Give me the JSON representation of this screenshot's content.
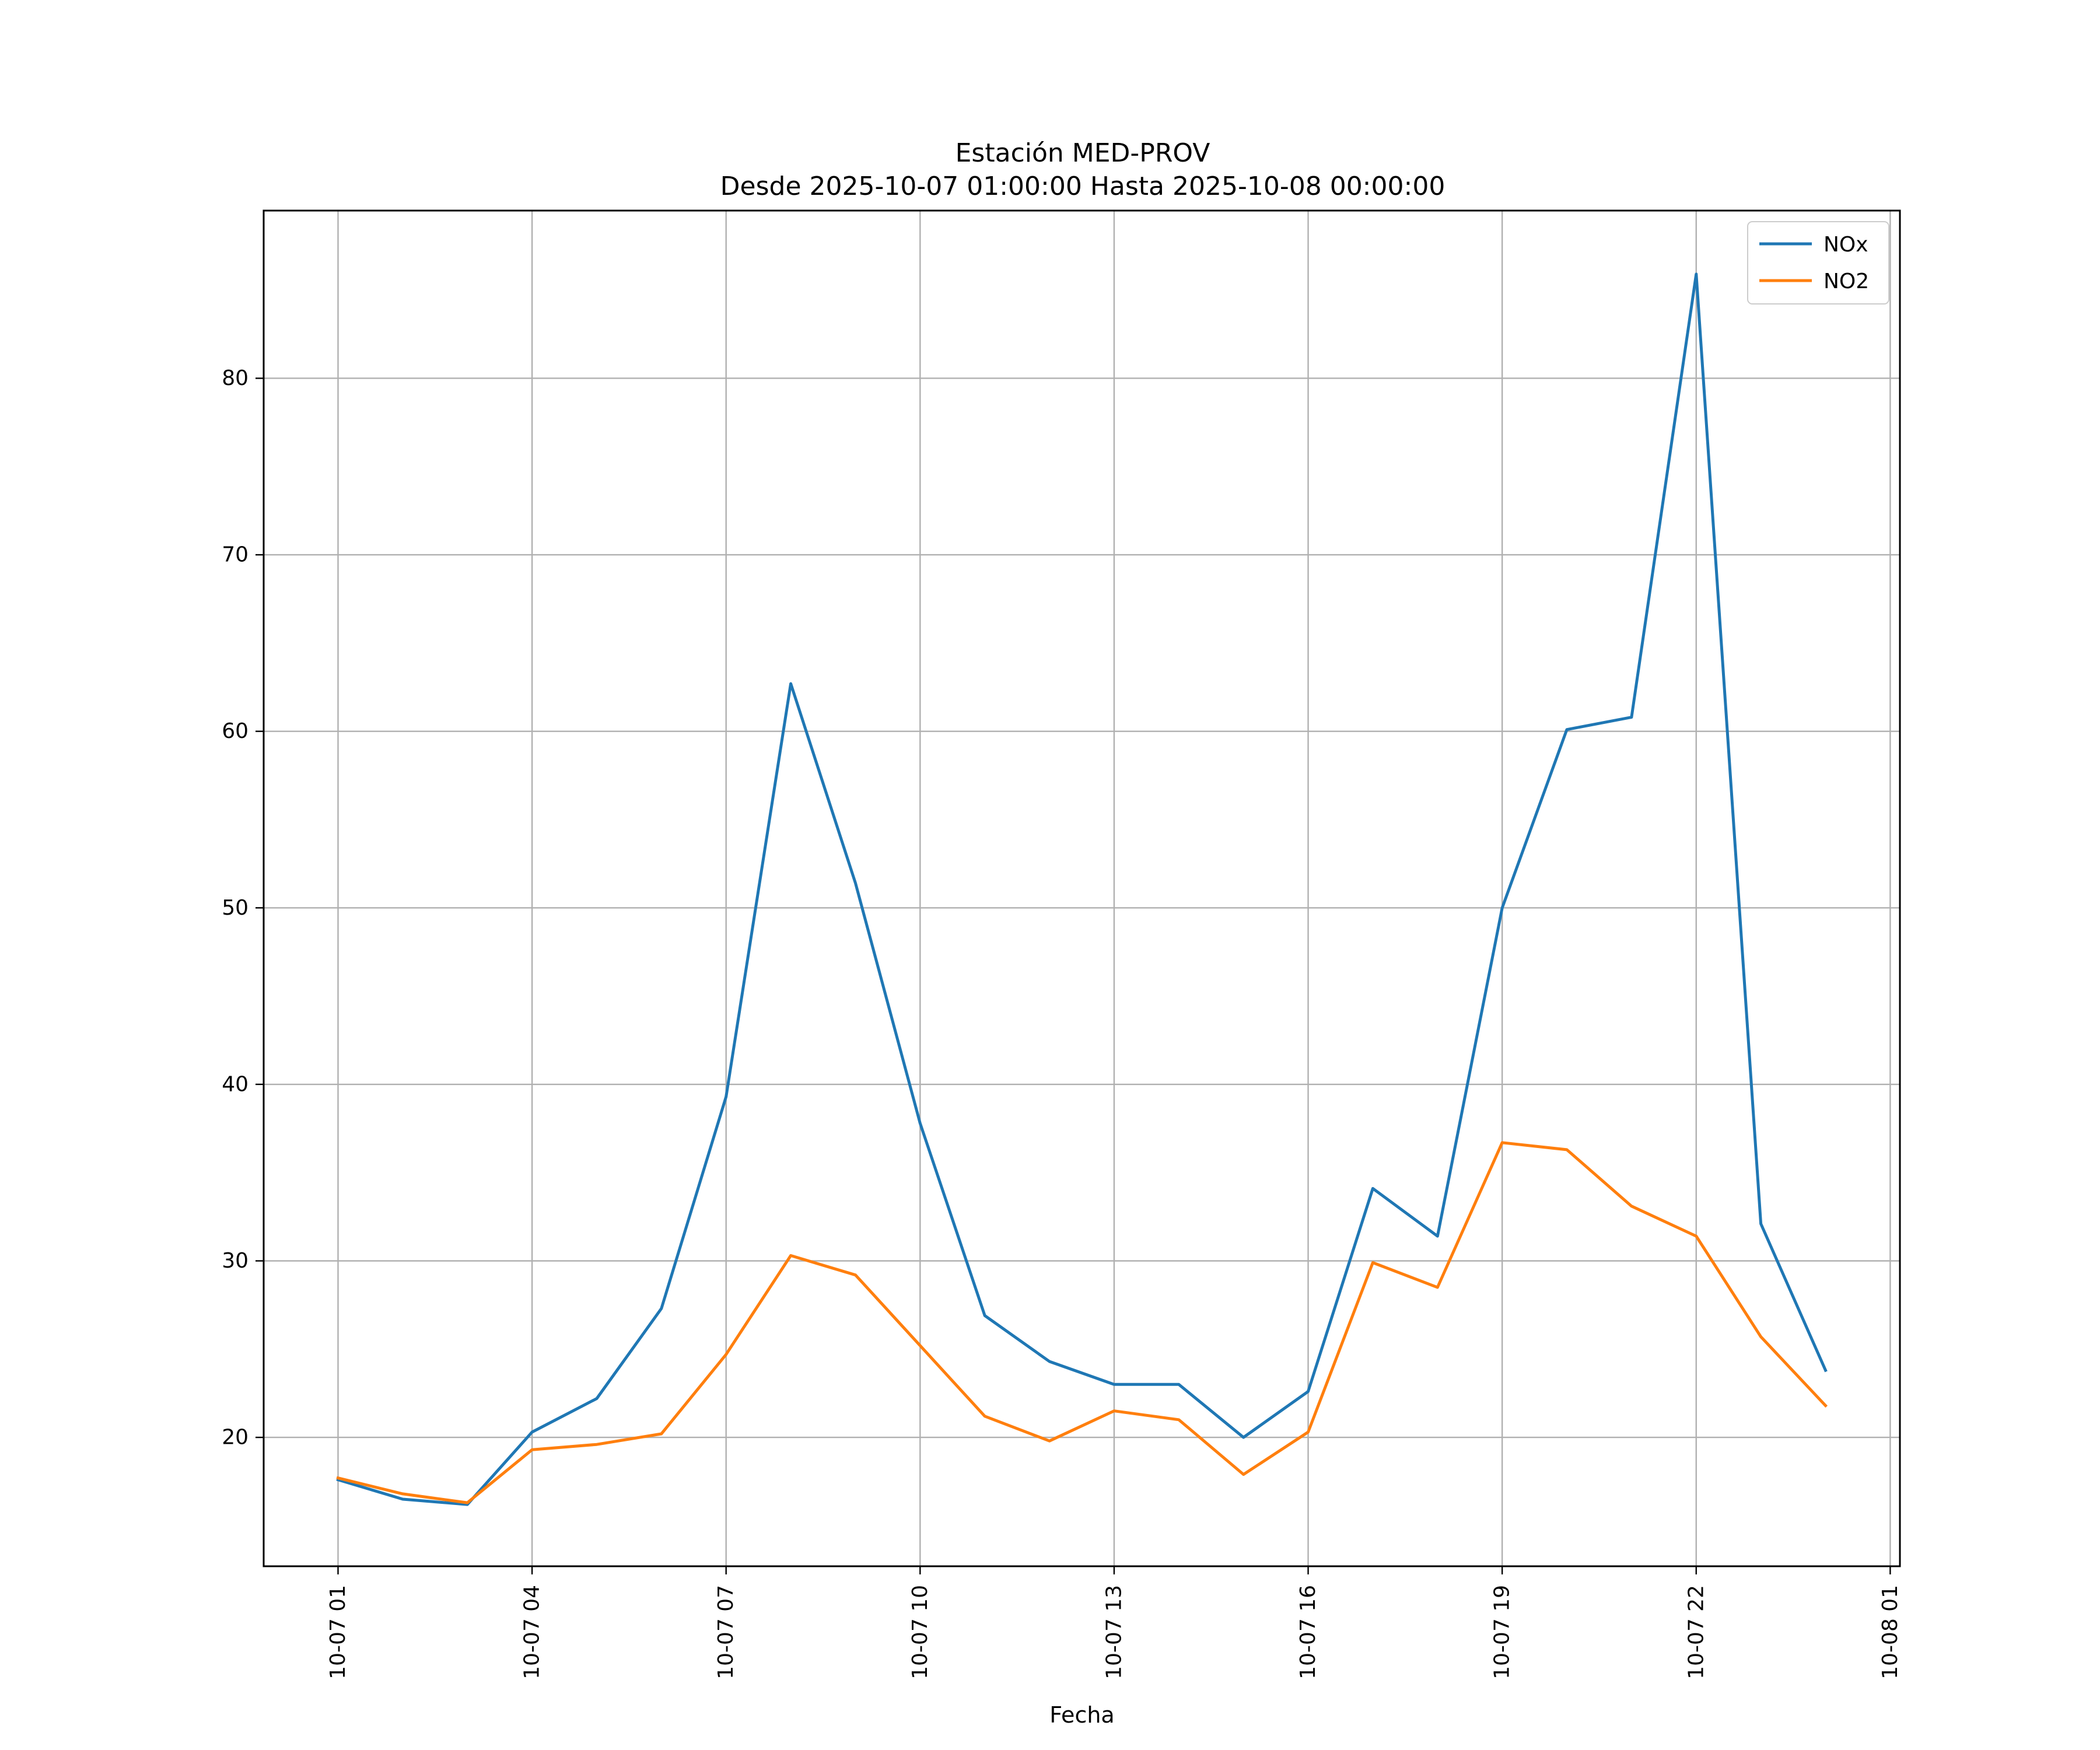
{
  "chart_data": {
    "type": "line",
    "title_line1": "Estación MED-PROV",
    "title_line2": "Desde 2025-10-07 01:00:00 Hasta 2025-10-08 00:00:00",
    "xlabel": "Fecha",
    "ylabel": "",
    "x": [
      "10-07 01",
      "10-07 02",
      "10-07 03",
      "10-07 04",
      "10-07 05",
      "10-07 06",
      "10-07 07",
      "10-07 08",
      "10-07 09",
      "10-07 10",
      "10-07 11",
      "10-07 12",
      "10-07 13",
      "10-07 14",
      "10-07 15",
      "10-07 16",
      "10-07 17",
      "10-07 18",
      "10-07 19",
      "10-07 20",
      "10-07 21",
      "10-07 22",
      "10-07 23",
      "10-08 00"
    ],
    "x_ticks": [
      "10-07 01",
      "10-07 04",
      "10-07 07",
      "10-07 10",
      "10-07 13",
      "10-07 16",
      "10-07 19",
      "10-07 22",
      "10-08 01"
    ],
    "y_ticks": [
      20,
      30,
      40,
      50,
      60,
      70,
      80
    ],
    "ylim": [
      12.7,
      89.5
    ],
    "xlim_hours": [
      -1.15,
      24.15
    ],
    "grid": true,
    "legend_position": "top-right",
    "series": [
      {
        "name": "NOx",
        "color": "#1f77b4",
        "values": [
          17.6,
          16.5,
          16.2,
          20.3,
          22.2,
          27.3,
          39.3,
          62.7,
          51.4,
          37.8,
          26.9,
          24.3,
          23.0,
          23.0,
          20.0,
          22.6,
          34.1,
          31.4,
          50.0,
          60.1,
          60.8,
          85.9,
          32.1,
          23.8
        ]
      },
      {
        "name": "NO2",
        "color": "#ff7f0e",
        "values": [
          17.7,
          16.8,
          16.3,
          19.3,
          19.6,
          20.2,
          24.7,
          30.3,
          29.2,
          25.2,
          21.2,
          19.8,
          21.5,
          21.0,
          17.9,
          20.3,
          29.9,
          28.5,
          36.7,
          36.3,
          33.1,
          31.4,
          25.7,
          21.8
        ]
      }
    ]
  }
}
